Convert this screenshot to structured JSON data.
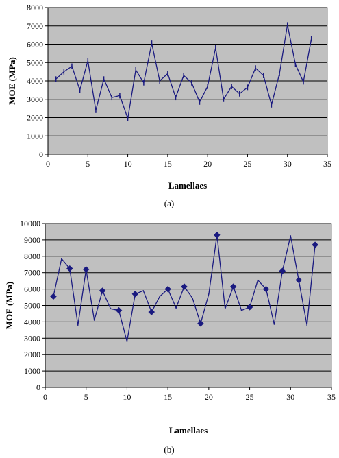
{
  "colors": {
    "plot_bg": "#c0c0c0",
    "series": "#1a1a80",
    "gridline": "#000000"
  },
  "chart_data": [
    {
      "type": "line",
      "caption": "(a)",
      "xlabel": "Lamellaes",
      "ylabel": "MOE (MPa)",
      "xlim": [
        0,
        35
      ],
      "ylim": [
        0,
        8000
      ],
      "x_ticks": [
        "0",
        "5",
        "10",
        "15",
        "20",
        "25",
        "30",
        "35"
      ],
      "y_ticks": [
        "0",
        "1000",
        "2000",
        "3000",
        "4000",
        "5000",
        "6000",
        "7000",
        "8000"
      ],
      "grid": "horizontal",
      "marker": "dash",
      "series": [
        {
          "x": [
            1,
            2,
            3,
            4,
            5,
            6,
            7,
            8,
            9,
            10,
            11,
            12,
            13,
            14,
            15,
            16,
            17,
            18,
            19,
            20,
            21,
            22,
            23,
            24,
            25,
            26,
            27,
            28,
            29,
            30,
            31,
            32,
            33
          ],
          "values": [
            4100,
            4500,
            4800,
            3500,
            5100,
            2400,
            4100,
            3100,
            3200,
            1950,
            4600,
            3900,
            6050,
            4000,
            4400,
            3100,
            4300,
            3900,
            2850,
            3700,
            5800,
            3000,
            3700,
            3300,
            3650,
            4700,
            4300,
            2700,
            4400,
            7050,
            4900,
            3950,
            6300
          ]
        }
      ]
    },
    {
      "type": "line",
      "caption": "(b)",
      "xlabel": "Lamellaes",
      "ylabel": "MOE (MPa)",
      "xlim": [
        0,
        35
      ],
      "ylim": [
        0,
        10000
      ],
      "x_ticks": [
        "0",
        "5",
        "10",
        "15",
        "20",
        "25",
        "30",
        "35"
      ],
      "y_ticks": [
        "0",
        "1000",
        "2000",
        "3000",
        "4000",
        "5000",
        "6000",
        "7000",
        "8000",
        "9000",
        "10000"
      ],
      "grid": "horizontal",
      "marker": "diamond-alternating",
      "series": [
        {
          "x": [
            1,
            2,
            3,
            4,
            5,
            6,
            7,
            8,
            9,
            10,
            11,
            12,
            13,
            14,
            15,
            16,
            17,
            18,
            19,
            20,
            21,
            22,
            23,
            24,
            25,
            26,
            27,
            28,
            29,
            30,
            31,
            32,
            33
          ],
          "values": [
            5550,
            7850,
            7250,
            3800,
            7200,
            4100,
            5900,
            4800,
            4700,
            2800,
            5700,
            5900,
            4600,
            5550,
            6000,
            4850,
            6150,
            5450,
            3900,
            5700,
            9300,
            4800,
            6150,
            4700,
            4900,
            6550,
            6000,
            3850,
            7100,
            9250,
            6550,
            3800,
            8700
          ]
        }
      ]
    }
  ]
}
